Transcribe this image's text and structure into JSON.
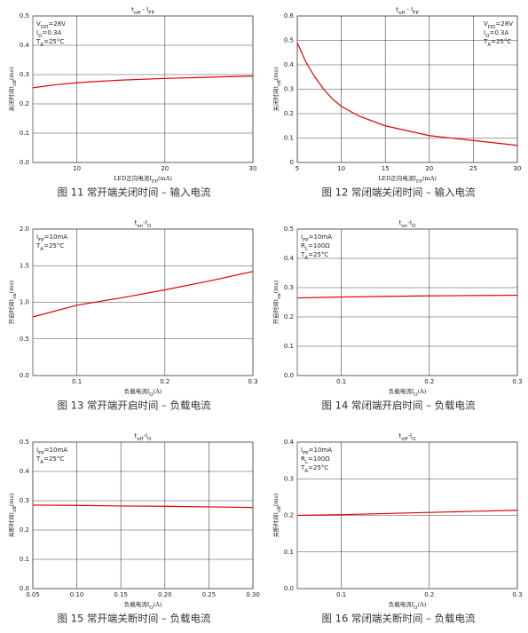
{
  "chart_data": [
    {
      "type": "line",
      "title": [
        "t",
        "off",
        " - I",
        "FP"
      ],
      "y_label": [
        "关闭时间t",
        "off",
        "(ms)"
      ],
      "x_label": [
        "LED正向电流I",
        "FP",
        "(mA)"
      ],
      "annotations": [
        [
          "V",
          "DD",
          "=28V"
        ],
        [
          "I",
          "O",
          "=0.3A"
        ],
        [
          "T",
          "A",
          "=25°C"
        ]
      ],
      "annotation_position": "top-left",
      "caption": "图 11 常开端关闭时间 – 输入电流",
      "grid": true,
      "xlim": [
        5,
        30
      ],
      "xticks": [
        10,
        20,
        30
      ],
      "ylim": [
        0,
        0.5
      ],
      "yticks": [
        {
          "value": 0,
          "label": "0.0"
        },
        0.1,
        0.2,
        0.3,
        0.4,
        0.5
      ],
      "x": [
        5,
        7.5,
        10,
        12.5,
        15,
        20,
        25,
        30
      ],
      "series": [
        {
          "color": "#e00000",
          "values": [
            0.255,
            0.265,
            0.272,
            0.277,
            0.281,
            0.287,
            0.291,
            0.295
          ]
        }
      ]
    },
    {
      "type": "line",
      "title": [
        "t",
        "off",
        " - I",
        "FP"
      ],
      "y_label": [
        "关闭时间t",
        "off",
        "(ms)"
      ],
      "x_label": [
        "LED正向电流I",
        "FP",
        "(mA)"
      ],
      "annotations": [
        [
          "V",
          "DD",
          "=28V"
        ],
        [
          "I",
          "O",
          "=0.3A"
        ],
        [
          "T",
          "A",
          "=25°C"
        ]
      ],
      "annotation_position": "top-right",
      "caption": "图 12 常闭端关闭时间 – 输入电流",
      "grid": true,
      "xlim": [
        5,
        30
      ],
      "xticks": [
        5,
        10,
        15,
        20,
        25,
        30
      ],
      "ylim": [
        0,
        0.6
      ],
      "yticks": [
        0,
        0.1,
        0.2,
        0.3,
        0.4,
        0.5,
        0.6
      ],
      "x": [
        5,
        6,
        7,
        8,
        9,
        10,
        12,
        15,
        20,
        25,
        30
      ],
      "series": [
        {
          "color": "#e00000",
          "values": [
            0.49,
            0.41,
            0.35,
            0.3,
            0.26,
            0.23,
            0.19,
            0.15,
            0.11,
            0.09,
            0.07
          ]
        }
      ]
    },
    {
      "type": "line",
      "title": [
        "t",
        "on",
        "-I",
        "O"
      ],
      "y_label": [
        "开启时间t",
        "on",
        "(ms)"
      ],
      "x_label": [
        "负载电流I",
        "O",
        "(A)"
      ],
      "annotations": [
        [
          "I",
          "FP",
          "=10mA"
        ],
        [
          "T",
          "A",
          "=25°C"
        ]
      ],
      "annotation_position": "top-left",
      "caption": "图 13 常开端开启时间 – 负载电流",
      "grid": true,
      "xlim": [
        0.05,
        0.3
      ],
      "xticks": [
        0.1,
        0.2,
        0.3
      ],
      "ylim": [
        0,
        2
      ],
      "yticks": [
        {
          "value": 0,
          "label": "0.0"
        },
        0.5,
        {
          "value": 1,
          "label": "1.0"
        },
        1.5,
        {
          "value": 2,
          "label": "2.0"
        }
      ],
      "x": [
        0.05,
        0.1,
        0.15,
        0.2,
        0.25,
        0.3
      ],
      "series": [
        {
          "color": "#e00000",
          "values": [
            0.8,
            0.96,
            1.06,
            1.17,
            1.29,
            1.42
          ]
        }
      ]
    },
    {
      "type": "line",
      "title": [
        "t",
        "on",
        "-I",
        "O"
      ],
      "y_label": [
        "开启时间t",
        "on",
        "(ms)"
      ],
      "x_label": [
        "负载电流I",
        "O",
        "(A)"
      ],
      "annotations": [
        [
          "I",
          "FP",
          "=10mA"
        ],
        [
          "R",
          "L",
          "=100Ω"
        ],
        [
          "T",
          "A",
          "=25°C"
        ]
      ],
      "annotation_position": "top-left",
      "caption": "图 14 常闭端开启时间 – 负载电流",
      "grid": true,
      "xlim": [
        0.05,
        0.3
      ],
      "xticks": [
        0.1,
        0.2,
        0.3
      ],
      "ylim": [
        0,
        0.5
      ],
      "yticks": [
        {
          "value": 0,
          "label": "0.0"
        },
        0.1,
        0.2,
        0.3,
        0.4,
        0.5
      ],
      "x": [
        0.05,
        0.1,
        0.15,
        0.2,
        0.25,
        0.3
      ],
      "series": [
        {
          "color": "#e00000",
          "values": [
            0.265,
            0.268,
            0.27,
            0.272,
            0.273,
            0.274
          ]
        }
      ]
    },
    {
      "type": "line",
      "title": [
        "t",
        "off",
        "-I",
        "O"
      ],
      "y_label": [
        "关断时间t",
        "off",
        "(ms)"
      ],
      "x_label": [
        "负载电流I",
        "O",
        "(A)"
      ],
      "annotations": [
        [
          "I",
          "FP",
          "=10mA"
        ],
        [
          "T",
          "A",
          "=25°C"
        ]
      ],
      "annotation_position": "top-left",
      "caption": "图 15 常开端关断时间 – 负载电流",
      "grid": true,
      "xlim": [
        0.05,
        0.3
      ],
      "xticks": [
        0.05,
        {
          "value": 0.1,
          "label": "0.10"
        },
        0.15,
        {
          "value": 0.2,
          "label": "0.20"
        },
        0.25,
        {
          "value": 0.3,
          "label": "0.30"
        }
      ],
      "ylim": [
        0,
        0.5
      ],
      "yticks": [
        {
          "value": 0,
          "label": "0.0"
        },
        0.1,
        0.2,
        0.3,
        0.4,
        0.5
      ],
      "x": [
        0.05,
        0.1,
        0.15,
        0.2,
        0.25,
        0.3
      ],
      "series": [
        {
          "color": "#e00000",
          "values": [
            0.285,
            0.284,
            0.282,
            0.281,
            0.279,
            0.277
          ]
        }
      ]
    },
    {
      "type": "line",
      "title": [
        "t",
        "off",
        "-I",
        "O"
      ],
      "y_label": [
        "关断时间t",
        "off",
        "(ms)"
      ],
      "x_label": [
        "负载电流I",
        "O",
        "(A)"
      ],
      "annotations": [
        [
          "I",
          "FP",
          "=10mA"
        ],
        [
          "R",
          "L",
          "=100Ω"
        ],
        [
          "T",
          "A",
          "=25°C"
        ]
      ],
      "annotation_position": "top-left",
      "caption": "图 16 常闭端关断时间 – 负载电流",
      "grid": true,
      "xlim": [
        0.05,
        0.3
      ],
      "xticks": [
        0.1,
        0.2,
        0.3
      ],
      "ylim": [
        0,
        0.4
      ],
      "yticks": [
        {
          "value": 0,
          "label": "0.0"
        },
        0.1,
        0.2,
        0.3,
        0.4
      ],
      "x": [
        0.05,
        0.1,
        0.15,
        0.2,
        0.25,
        0.3
      ],
      "series": [
        {
          "color": "#e00000",
          "values": [
            0.2,
            0.202,
            0.205,
            0.208,
            0.211,
            0.214
          ]
        }
      ]
    }
  ]
}
